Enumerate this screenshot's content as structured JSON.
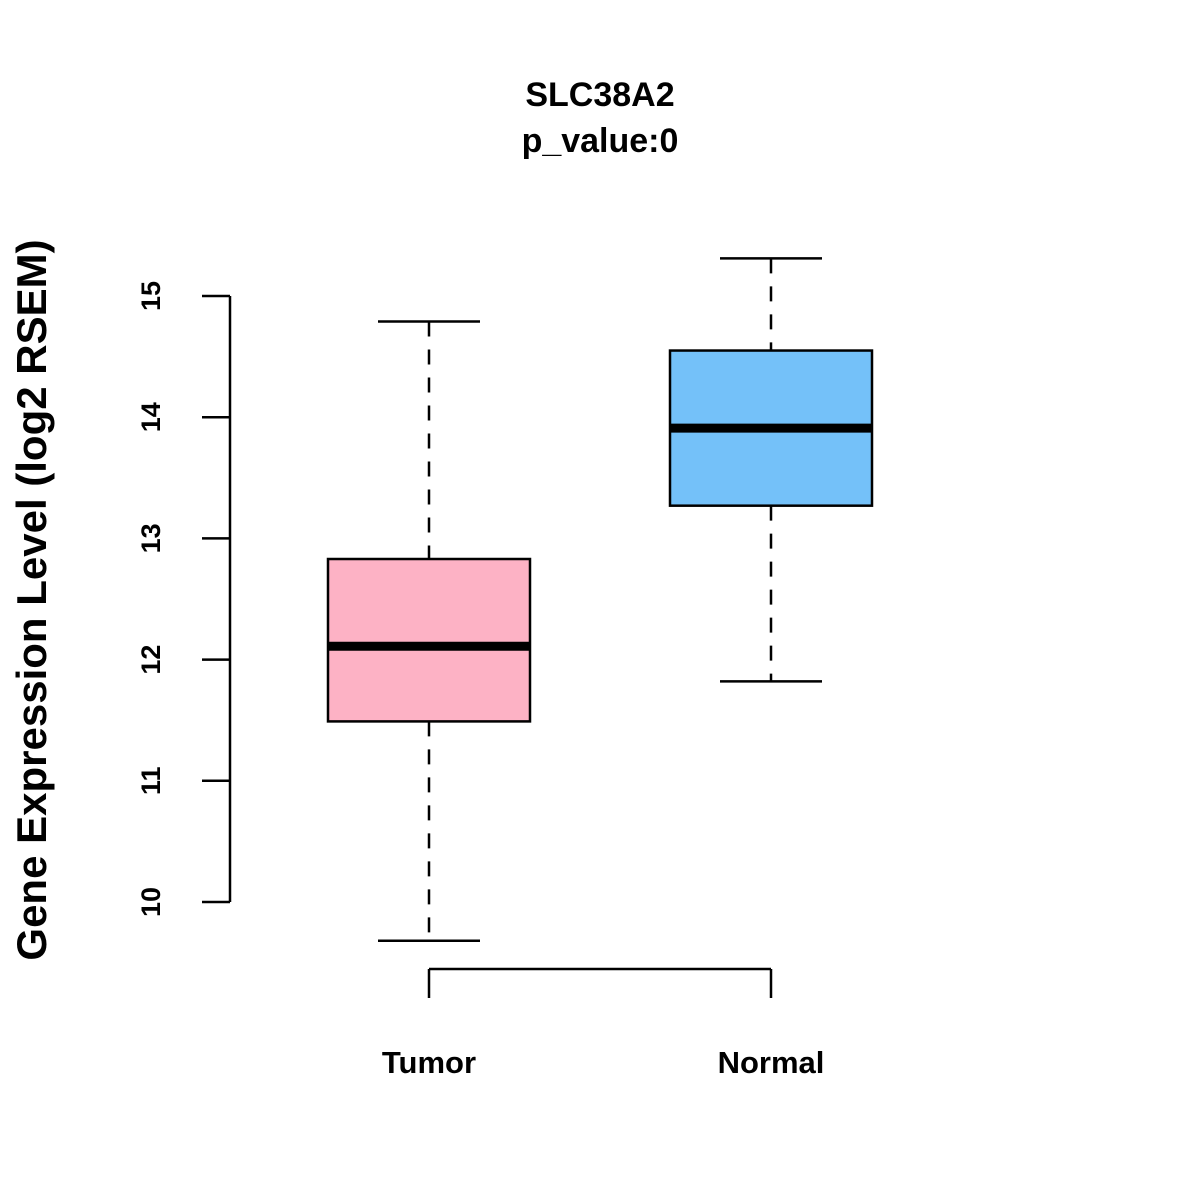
{
  "chart_data": {
    "type": "box",
    "title": "SLC38A2",
    "subtitle": "p_value:0",
    "xlabel": "",
    "ylabel": "Gene Expression Level (log2 RSEM)",
    "ylim": [
      9.5,
      15.4
    ],
    "yticks": [
      10,
      11,
      12,
      13,
      14,
      15
    ],
    "grid": false,
    "categories": [
      "Tumor",
      "Normal"
    ],
    "boxes": [
      {
        "name": "Tumor",
        "whisker_low": 9.68,
        "q1": 11.49,
        "median": 12.11,
        "q3": 12.83,
        "whisker_high": 14.79,
        "color": "#FDB2C5"
      },
      {
        "name": "Normal",
        "whisker_low": 11.82,
        "q1": 13.27,
        "median": 13.91,
        "q3": 14.55,
        "whisker_high": 15.31,
        "color": "#74C1F9"
      }
    ]
  }
}
